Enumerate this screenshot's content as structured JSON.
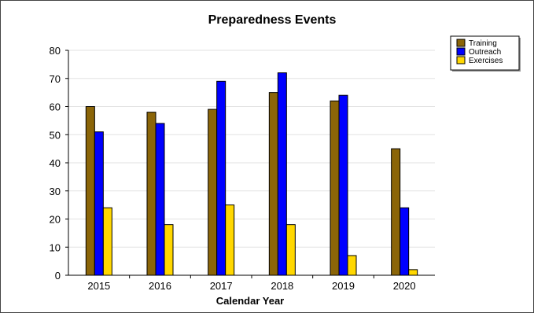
{
  "chart_data": {
    "type": "bar",
    "title": "Preparedness Events",
    "xlabel": "Calendar Year",
    "ylabel": "",
    "ylim": [
      0,
      80
    ],
    "yticks": [
      0,
      10,
      20,
      30,
      40,
      50,
      60,
      70,
      80
    ],
    "grid": true,
    "legend_position": "top-right",
    "categories": [
      "2015",
      "2016",
      "2017",
      "2018",
      "2019",
      "2020"
    ],
    "series": [
      {
        "name": "Training",
        "color": "#8B6508",
        "values": [
          60,
          58,
          59,
          65,
          62,
          45
        ]
      },
      {
        "name": "Outreach",
        "color": "#0000FF",
        "values": [
          51,
          54,
          69,
          72,
          64,
          24
        ]
      },
      {
        "name": "Exercises",
        "color": "#FFD700",
        "values": [
          24,
          18,
          25,
          18,
          7,
          2
        ]
      }
    ]
  }
}
